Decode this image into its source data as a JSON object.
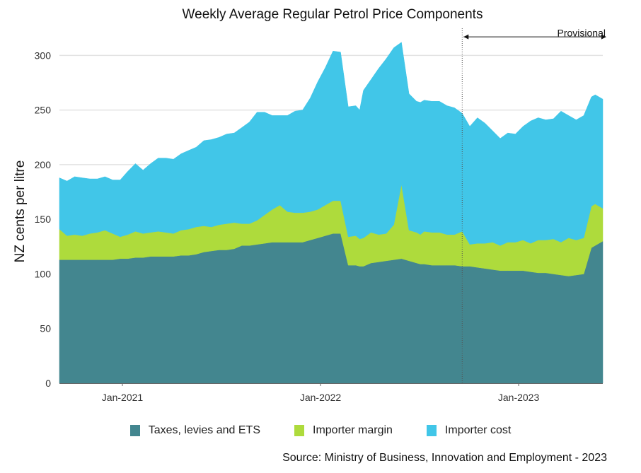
{
  "chart_data": {
    "type": "area",
    "stacked": true,
    "title": "Weekly Average Regular Petrol Price Components",
    "ylabel": "NZ cents per litre",
    "xlabel": "",
    "ylim": [
      0,
      330
    ],
    "xlim": [
      "2020-09-07",
      "2023-06-05"
    ],
    "y_ticks": [
      0,
      50,
      100,
      150,
      200,
      250,
      300
    ],
    "x_ticks": [
      {
        "date": "2021-01-01",
        "label": "Jan-2021"
      },
      {
        "date": "2022-01-01",
        "label": "Jan-2022"
      },
      {
        "date": "2023-01-01",
        "label": "Jan-2023"
      }
    ],
    "grid": "horizontal",
    "legend_position": "bottom",
    "annotations": [
      {
        "text": "Provisional",
        "from_date": "2022-09-19",
        "to_date": "2023-06-05",
        "value": 317
      }
    ],
    "x": [
      "2020-09-07",
      "2020-09-21",
      "2020-10-05",
      "2020-10-19",
      "2020-11-02",
      "2020-11-16",
      "2020-11-30",
      "2020-12-14",
      "2020-12-28",
      "2021-01-11",
      "2021-01-25",
      "2021-02-08",
      "2021-02-22",
      "2021-03-08",
      "2021-03-22",
      "2021-04-05",
      "2021-04-19",
      "2021-05-03",
      "2021-05-17",
      "2021-05-31",
      "2021-06-14",
      "2021-06-28",
      "2021-07-12",
      "2021-07-26",
      "2021-08-09",
      "2021-08-23",
      "2021-09-06",
      "2021-09-20",
      "2021-10-04",
      "2021-10-18",
      "2021-11-01",
      "2021-11-15",
      "2021-11-29",
      "2021-12-13",
      "2021-12-27",
      "2022-01-10",
      "2022-01-24",
      "2022-02-07",
      "2022-02-21",
      "2022-03-07",
      "2022-03-14",
      "2022-03-21",
      "2022-04-04",
      "2022-04-18",
      "2022-05-02",
      "2022-05-16",
      "2022-05-30",
      "2022-06-13",
      "2022-06-27",
      "2022-07-04",
      "2022-07-11",
      "2022-07-25",
      "2022-08-08",
      "2022-08-22",
      "2022-09-05",
      "2022-09-19",
      "2022-10-03",
      "2022-10-17",
      "2022-10-31",
      "2022-11-14",
      "2022-11-28",
      "2022-12-12",
      "2022-12-26",
      "2023-01-09",
      "2023-01-23",
      "2023-02-06",
      "2023-02-20",
      "2023-03-06",
      "2023-03-20",
      "2023-04-03",
      "2023-04-17",
      "2023-05-01",
      "2023-05-15",
      "2023-05-22",
      "2023-06-05"
    ],
    "series": [
      {
        "name": "Taxes, levies and ETS",
        "color": "#43868F",
        "values": [
          113,
          113,
          113,
          113,
          113,
          113,
          113,
          113,
          114,
          114,
          115,
          115,
          116,
          116,
          116,
          116,
          117,
          117,
          118,
          120,
          121,
          122,
          122,
          123,
          126,
          126,
          127,
          128,
          129,
          129,
          129,
          129,
          129,
          131,
          133,
          135,
          137,
          137,
          108,
          108,
          107,
          107,
          110,
          111,
          112,
          113,
          114,
          112,
          110,
          109,
          109,
          108,
          108,
          108,
          108,
          107,
          107,
          106,
          105,
          104,
          103,
          103,
          103,
          103,
          102,
          101,
          101,
          100,
          99,
          98,
          99,
          100,
          124,
          126,
          130
        ]
      },
      {
        "name": "Importer margin",
        "color": "#AEDB3C",
        "values": [
          28,
          22,
          23,
          22,
          24,
          25,
          27,
          24,
          20,
          22,
          24,
          22,
          22,
          23,
          22,
          21,
          23,
          24,
          25,
          24,
          22,
          23,
          24,
          24,
          20,
          20,
          22,
          26,
          30,
          34,
          28,
          27,
          27,
          26,
          26,
          28,
          30,
          30,
          26,
          27,
          25,
          26,
          28,
          25,
          25,
          32,
          68,
          28,
          28,
          27,
          30,
          30,
          30,
          28,
          28,
          32,
          20,
          22,
          23,
          25,
          23,
          26,
          26,
          28,
          26,
          30,
          30,
          32,
          30,
          35,
          32,
          33,
          38,
          38,
          30
        ]
      },
      {
        "name": "Importer cost",
        "color": "#41C6E8",
        "values": [
          47,
          50,
          53,
          53,
          50,
          49,
          49,
          49,
          52,
          58,
          62,
          58,
          63,
          67,
          68,
          68,
          70,
          72,
          73,
          78,
          80,
          80,
          82,
          82,
          88,
          93,
          99,
          94,
          86,
          82,
          88,
          93,
          94,
          104,
          117,
          126,
          137,
          136,
          119,
          119,
          118,
          135,
          140,
          152,
          160,
          162,
          130,
          125,
          120,
          121,
          120,
          120,
          120,
          118,
          116,
          108,
          108,
          115,
          110,
          102,
          98,
          100,
          99,
          104,
          112,
          112,
          110,
          110,
          120,
          112,
          110,
          112,
          100,
          100,
          100
        ]
      }
    ]
  },
  "source": "Source: Ministry of Business, Innovation and Employment - 2023"
}
